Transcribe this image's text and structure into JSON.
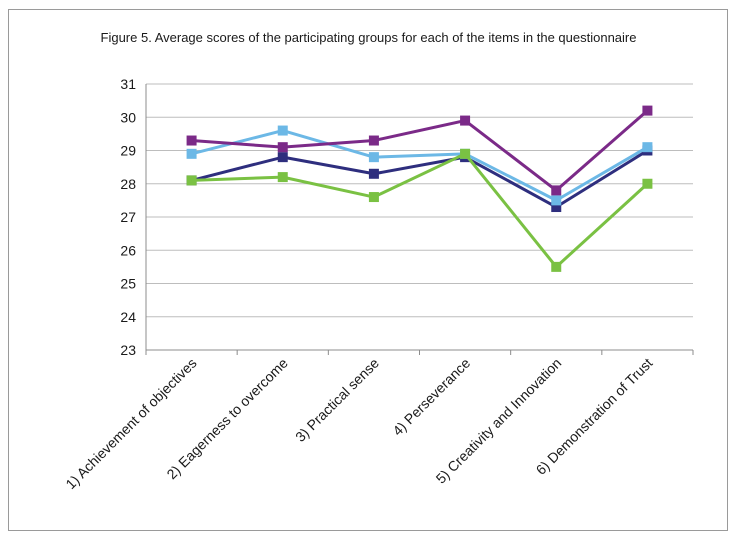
{
  "chart_data": {
    "type": "line",
    "title": "Figure 5. Average scores of the participating groups for each of the items in the questionnaire",
    "xlabel": "",
    "ylabel": "",
    "ylim": [
      23,
      31
    ],
    "yticks": [
      23,
      24,
      25,
      26,
      27,
      28,
      29,
      30,
      31
    ],
    "grid": true,
    "legend": "none",
    "categories": [
      "1) Achievement of objectives",
      "2) Eagerness to overcome",
      "3) Practical sense",
      "4) Perseverance",
      "5) Creativity and Innovation",
      "6) Demonstration of Trust"
    ],
    "series": [
      {
        "color": "#2e2e7e",
        "values": [
          28.1,
          28.8,
          28.3,
          28.8,
          27.3,
          29.0
        ]
      },
      {
        "color": "#6cb8e6",
        "values": [
          28.9,
          29.6,
          28.8,
          28.9,
          27.5,
          29.1
        ]
      },
      {
        "color": "#7b2a88",
        "values": [
          29.3,
          29.1,
          29.3,
          29.9,
          27.8,
          30.2
        ]
      },
      {
        "color": "#7ac143",
        "values": [
          28.1,
          28.2,
          27.6,
          28.9,
          25.5,
          28.0
        ]
      }
    ]
  }
}
